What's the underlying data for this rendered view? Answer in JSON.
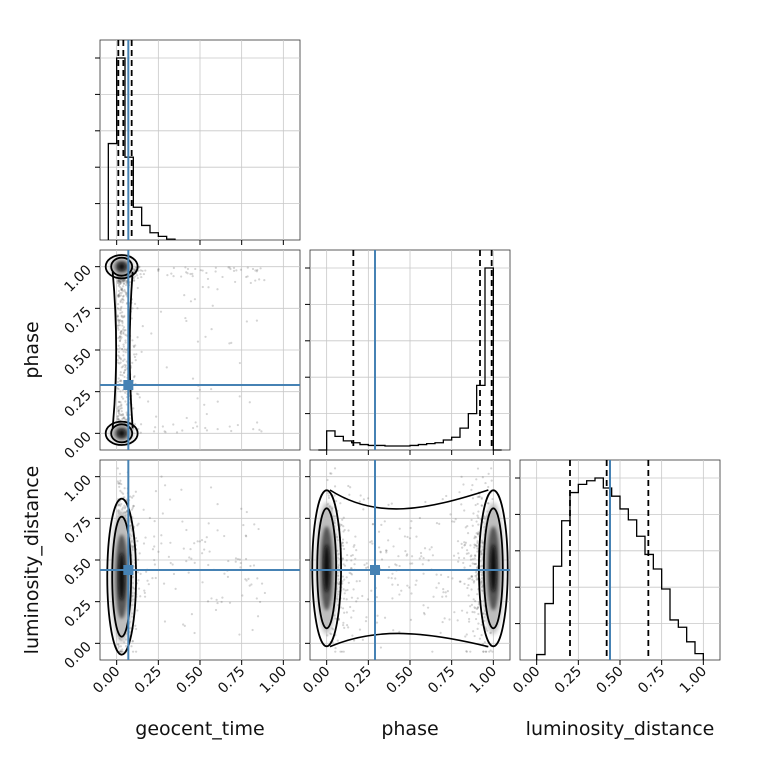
{
  "chart_data": {
    "type": "corner",
    "parameters": [
      "geocent_time",
      "phase",
      "luminosity_distance"
    ],
    "truths": {
      "geocent_time": 0.07,
      "phase": 0.29,
      "luminosity_distance": 0.44
    },
    "truth_color": "#4682b4",
    "axis_range": [
      -0.1,
      1.1
    ],
    "tick_labels": [
      "0.00",
      "0.25",
      "0.50",
      "0.75",
      "1.00"
    ],
    "grid": true,
    "panels": [
      {
        "id": "hist_geocent_time",
        "type": "histogram",
        "parameter": "geocent_time",
        "bin_width": 0.05,
        "bin_starts": [
          -0.05,
          0.0,
          0.05,
          0.1,
          0.15,
          0.2,
          0.25,
          0.3
        ],
        "counts": [
          530,
          1000,
          455,
          180,
          80,
          40,
          20,
          5
        ],
        "quantiles": [
          0.01,
          0.04,
          0.09
        ]
      },
      {
        "id": "hist_phase",
        "type": "histogram",
        "parameter": "phase",
        "bin_width": 0.05,
        "bin_starts": [
          -0.05,
          0.0,
          0.05,
          0.1,
          0.15,
          0.2,
          0.25,
          0.3,
          0.35,
          0.4,
          0.45,
          0.5,
          0.55,
          0.6,
          0.65,
          0.7,
          0.75,
          0.8,
          0.85,
          0.9,
          0.95,
          1.0
        ],
        "counts": [
          0,
          105,
          75,
          50,
          40,
          30,
          25,
          25,
          22,
          22,
          22,
          25,
          30,
          35,
          40,
          55,
          70,
          120,
          200,
          355,
          1000,
          0
        ],
        "quantiles": [
          0.16,
          0.92,
          0.99
        ]
      },
      {
        "id": "hist_luminosity_distance",
        "type": "histogram",
        "parameter": "luminosity_distance",
        "bin_width": 0.05,
        "bin_starts": [
          0.0,
          0.05,
          0.1,
          0.15,
          0.2,
          0.25,
          0.3,
          0.35,
          0.4,
          0.45,
          0.5,
          0.55,
          0.6,
          0.65,
          0.7,
          0.75,
          0.8,
          0.85,
          0.9,
          0.95
        ],
        "counts": [
          30,
          310,
          515,
          765,
          920,
          965,
          985,
          1000,
          945,
          900,
          830,
          770,
          680,
          580,
          500,
          390,
          220,
          180,
          100,
          35
        ],
        "quantiles": [
          0.2,
          0.42,
          0.67
        ]
      },
      {
        "id": "scatter_geocent_time_phase",
        "type": "2d_density",
        "x": "geocent_time",
        "y": "phase",
        "density_peaks": [
          {
            "x": 0.03,
            "y": 1.0
          },
          {
            "x": 0.03,
            "y": 0.0
          }
        ],
        "contour_levels": 2
      },
      {
        "id": "scatter_geocent_time_luminosity_distance",
        "type": "2d_density",
        "x": "geocent_time",
        "y": "luminosity_distance",
        "density_peaks": [
          {
            "x": 0.03,
            "y": 0.4
          }
        ],
        "contour_levels": 2
      },
      {
        "id": "scatter_phase_luminosity_distance",
        "type": "2d_density",
        "x": "phase",
        "y": "luminosity_distance",
        "density_peaks": [
          {
            "x": 1.0,
            "y": 0.45
          },
          {
            "x": 0.0,
            "y": 0.45
          }
        ],
        "contour_levels": 2
      }
    ],
    "xlabels": [
      "geocent_time",
      "phase",
      "luminosity_distance"
    ],
    "ylabels": [
      "",
      "phase",
      "luminosity_distance"
    ]
  }
}
